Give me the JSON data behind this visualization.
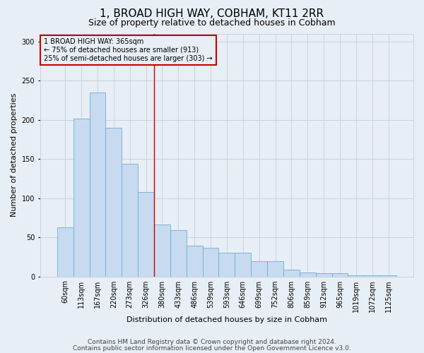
{
  "title": "1, BROAD HIGH WAY, COBHAM, KT11 2RR",
  "subtitle": "Size of property relative to detached houses in Cobham",
  "xlabel": "Distribution of detached houses by size in Cobham",
  "ylabel": "Number of detached properties",
  "bar_labels": [
    "60sqm",
    "113sqm",
    "167sqm",
    "220sqm",
    "273sqm",
    "326sqm",
    "380sqm",
    "433sqm",
    "486sqm",
    "539sqm",
    "593sqm",
    "646sqm",
    "699sqm",
    "752sqm",
    "806sqm",
    "859sqm",
    "912sqm",
    "965sqm",
    "1019sqm",
    "1072sqm",
    "1125sqm"
  ],
  "bar_values": [
    63,
    201,
    235,
    190,
    144,
    108,
    66,
    59,
    39,
    37,
    30,
    30,
    19,
    19,
    9,
    5,
    4,
    4,
    1,
    1,
    1
  ],
  "bar_color": "#c8daf0",
  "bar_edgecolor": "#6baed6",
  "grid_color": "#c8d4e0",
  "background_color": "#e8eef5",
  "annotation_box_text": "1 BROAD HIGH WAY: 365sqm\n← 75% of detached houses are smaller (913)\n25% of semi-detached houses are larger (303) →",
  "annotation_box_edgecolor": "#cc0000",
  "red_line_x": 5.5,
  "footer_line1": "Contains HM Land Registry data © Crown copyright and database right 2024.",
  "footer_line2": "Contains public sector information licensed under the Open Government Licence v3.0.",
  "ylim": [
    0,
    310
  ],
  "title_fontsize": 11,
  "subtitle_fontsize": 9,
  "axis_label_fontsize": 8,
  "tick_fontsize": 7,
  "annotation_fontsize": 7,
  "footer_fontsize": 6.5
}
